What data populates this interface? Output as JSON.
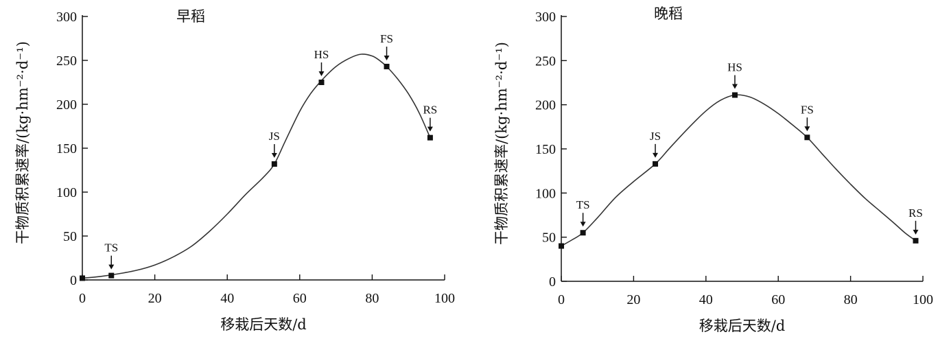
{
  "chart_data": [
    {
      "type": "line",
      "title": "早稻",
      "xlabel": "移栽后天数/d",
      "ylabel": "干物质积累速率/(kg·hm⁻²·d⁻¹)",
      "xlim": [
        0,
        100
      ],
      "ylim": [
        0,
        300
      ],
      "xticks": [
        0,
        20,
        40,
        60,
        80,
        100
      ],
      "yticks": [
        0,
        50,
        100,
        150,
        200,
        250,
        300
      ],
      "grid": false,
      "points": [
        {
          "x": 0,
          "y": 2
        },
        {
          "x": 8,
          "y": 5,
          "label": "TS"
        },
        {
          "x": 53,
          "y": 132,
          "label": "JS"
        },
        {
          "x": 66,
          "y": 225,
          "label": "HS"
        },
        {
          "x": 84,
          "y": 243,
          "label": "FS"
        },
        {
          "x": 96,
          "y": 162,
          "label": "RS"
        }
      ],
      "curve": [
        [
          0,
          2
        ],
        [
          5,
          4
        ],
        [
          10,
          7
        ],
        [
          15,
          11
        ],
        [
          20,
          17
        ],
        [
          25,
          26
        ],
        [
          30,
          38
        ],
        [
          35,
          55
        ],
        [
          40,
          75
        ],
        [
          45,
          97
        ],
        [
          50,
          117
        ],
        [
          53,
          132
        ],
        [
          56,
          158
        ],
        [
          60,
          192
        ],
        [
          63,
          212
        ],
        [
          66,
          227
        ],
        [
          70,
          243
        ],
        [
          74,
          253
        ],
        [
          77,
          257
        ],
        [
          80,
          255
        ],
        [
          82,
          250
        ],
        [
          84,
          243
        ],
        [
          87,
          229
        ],
        [
          90,
          212
        ],
        [
          93,
          190
        ],
        [
          96,
          162
        ]
      ]
    },
    {
      "type": "line",
      "title": "晚稻",
      "xlabel": "移栽后天数/d",
      "ylabel": "干物质积累速率/(kg·hm⁻²·d⁻¹)",
      "xlim": [
        0,
        100
      ],
      "ylim": [
        0,
        300
      ],
      "xticks": [
        0,
        20,
        40,
        60,
        80,
        100
      ],
      "yticks": [
        0,
        50,
        100,
        150,
        200,
        250,
        300
      ],
      "grid": false,
      "points": [
        {
          "x": 0,
          "y": 40
        },
        {
          "x": 6,
          "y": 55,
          "label": "TS"
        },
        {
          "x": 26,
          "y": 133,
          "label": "JS"
        },
        {
          "x": 48,
          "y": 211,
          "label": "HS"
        },
        {
          "x": 68,
          "y": 163,
          "label": "FS"
        },
        {
          "x": 98,
          "y": 46,
          "label": "RS"
        }
      ],
      "curve": [
        [
          0,
          40
        ],
        [
          3,
          47
        ],
        [
          6,
          55
        ],
        [
          10,
          72
        ],
        [
          15,
          95
        ],
        [
          20,
          113
        ],
        [
          26,
          133
        ],
        [
          30,
          151
        ],
        [
          35,
          173
        ],
        [
          40,
          193
        ],
        [
          44,
          205
        ],
        [
          48,
          211
        ],
        [
          52,
          209
        ],
        [
          56,
          201
        ],
        [
          60,
          190
        ],
        [
          64,
          177
        ],
        [
          68,
          163
        ],
        [
          72,
          145
        ],
        [
          76,
          127
        ],
        [
          80,
          110
        ],
        [
          84,
          94
        ],
        [
          88,
          80
        ],
        [
          92,
          66
        ],
        [
          95,
          55
        ],
        [
          98,
          46
        ]
      ]
    }
  ]
}
